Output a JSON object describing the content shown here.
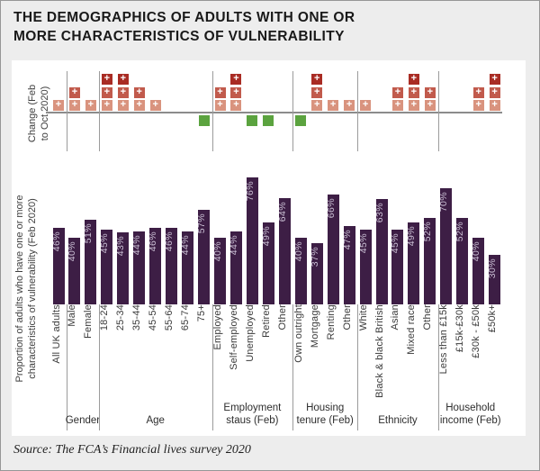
{
  "title": "THE DEMOGRAPHICS OF ADULTS WITH ONE OR\nMORE CHARACTERISTICS OF VULNERABILITY",
  "source_note": "Source: The FCA’s Financial lives survey 2020",
  "axes": {
    "change_label": "Change (Feb\nto Oct 2020)",
    "proportion_label": "Proportion of adults who have one or more\ncharacteristics of vulnerability (Feb 2020)"
  },
  "colors": {
    "background": "#ededed",
    "panel": "#ffffff",
    "bar": "#3d1e45",
    "bar_value_label": "#c9bed3",
    "plus_level_1": "#d9937e",
    "plus_level_2": "#c15a4c",
    "plus_level_3": "#a92c24",
    "decrease_green": "#5ba33f",
    "axis_line": "#8c8c8c",
    "divider": "#9b9b9b",
    "text": "#3a3a3a"
  },
  "chart_data": {
    "type": "bar",
    "title": "THE DEMOGRAPHICS OF ADULTS WITH ONE OR MORE CHARACTERISTICS OF VULNERABILITY",
    "ylabel": "Proportion of adults who have one or more characteristics of vulnerability (Feb 2020)",
    "secondary_axis_label": "Change (Feb to Oct 2020)",
    "unit": "%",
    "ylim": [
      0,
      80
    ],
    "grid": false,
    "categories": [
      "All UK adults",
      "Male",
      "Female",
      "18-24",
      "25-34",
      "35-44",
      "45-54",
      "55-64",
      "65-74",
      "75+",
      "Employed",
      "Self-employed",
      "Unemployed",
      "Retired",
      "Other",
      "Own outright",
      "Mortgage",
      "Renting",
      "Other",
      "White",
      "Black & black British",
      "Asian",
      "Mixed race",
      "Other",
      "Less than £15k",
      "£15k-£30k",
      "£30k - £50k",
      "£50k+"
    ],
    "values": [
      46,
      40,
      51,
      45,
      43,
      44,
      46,
      46,
      44,
      57,
      40,
      44,
      76,
      49,
      64,
      40,
      37,
      66,
      47,
      45,
      63,
      45,
      49,
      52,
      70,
      52,
      40,
      30
    ],
    "change_feb_to_oct_2020": [
      1,
      2,
      1,
      3,
      3,
      2,
      1,
      0,
      0,
      -1,
      2,
      3,
      -1,
      -1,
      0,
      -1,
      3,
      1,
      1,
      1,
      0,
      2,
      3,
      2,
      0,
      0,
      2,
      3
    ],
    "groups": [
      {
        "label": "Gender",
        "start": 1,
        "end": 2
      },
      {
        "label": "Age",
        "start": 3,
        "end": 9
      },
      {
        "label": "Employment\nstaus (Feb)",
        "start": 10,
        "end": 14
      },
      {
        "label": "Housing\ntenure (Feb)",
        "start": 15,
        "end": 18
      },
      {
        "label": "Ethnicity",
        "start": 19,
        "end": 23
      },
      {
        "label": "Household\nincome (Feb)",
        "start": 24,
        "end": 27
      }
    ]
  }
}
